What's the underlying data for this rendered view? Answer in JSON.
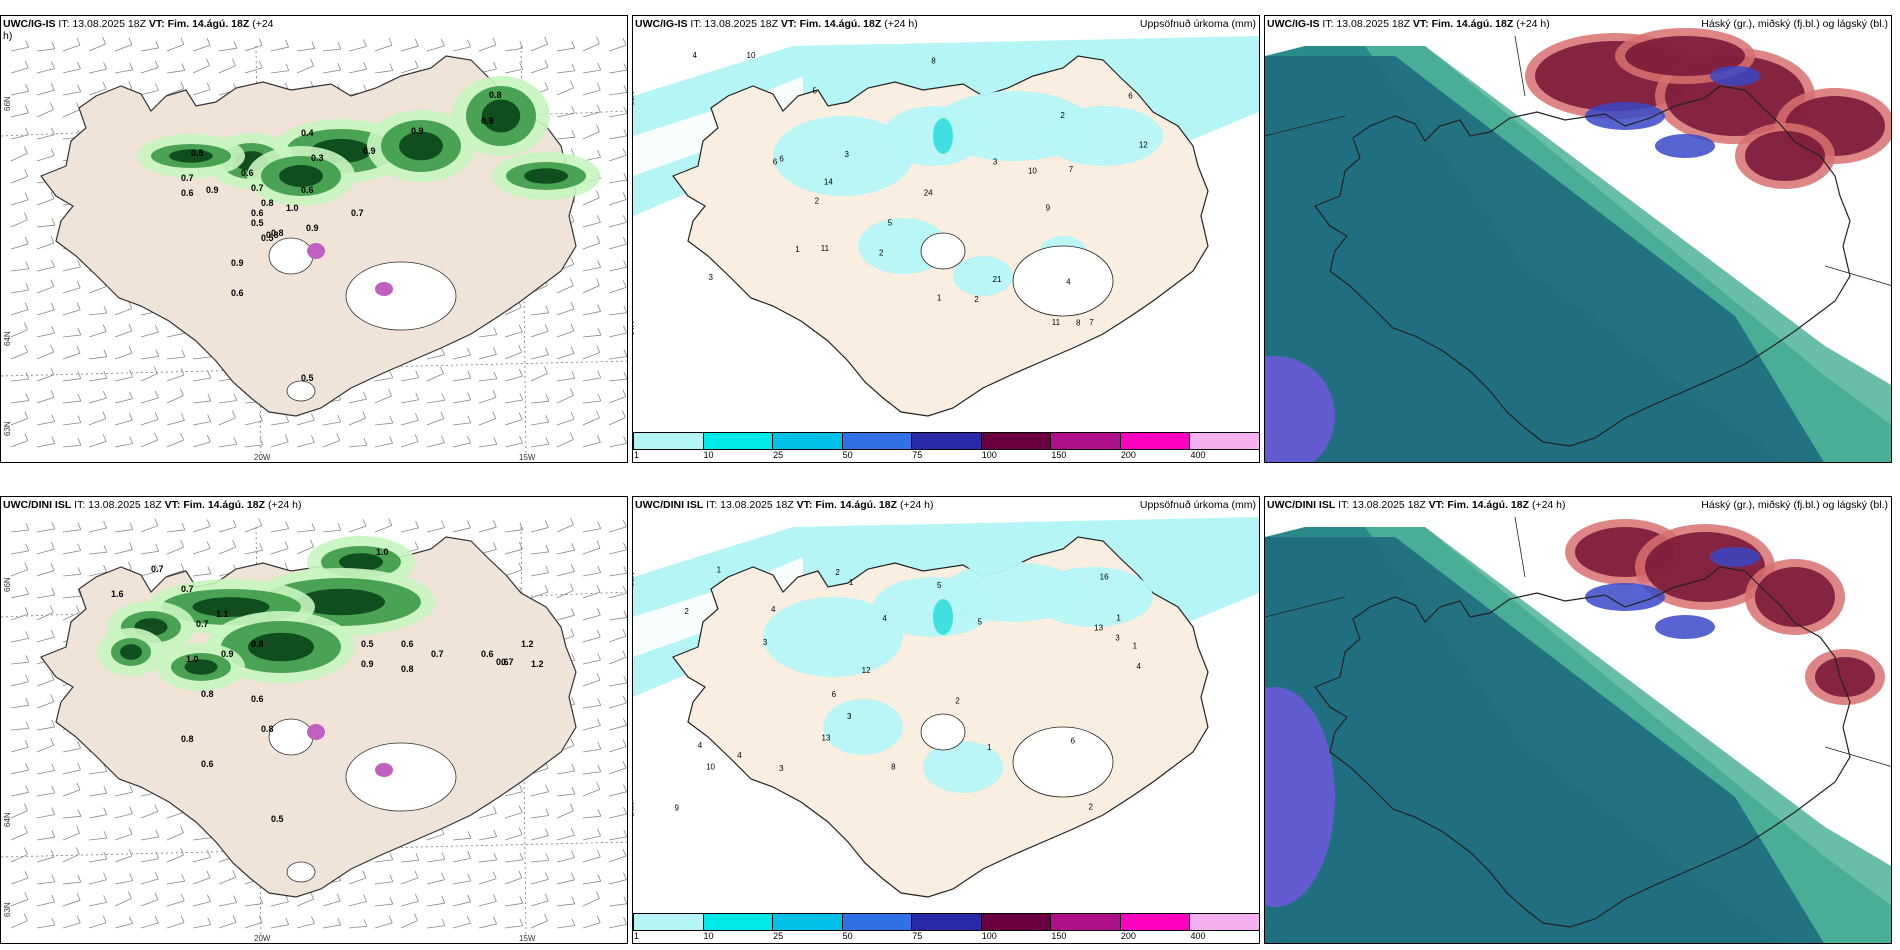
{
  "rows": [
    {
      "model": "UWC/IG-IS",
      "wind_panel": {
        "title_model": "UWC/IG-IS",
        "title_rest": " IT: 13.08.2025 18Z ",
        "title_vt": "VT: Fim. 14.ágú. 18Z",
        "title_tail": " (+24",
        "title_tail2": "h)"
      },
      "precip_panel": {
        "title_model": "UWC/IG-IS",
        "title_rest": " IT: 13.08.2025 18Z ",
        "title_vt": "VT: Fim. 14.ágú. 18Z",
        "title_tail": " (+24 h)",
        "right": "Uppsöfnuð úrkoma (mm)"
      },
      "cloud_panel": {
        "title_model": "UWC/IG-IS",
        "title_rest": " IT: 13.08.2025 18Z ",
        "title_vt": "VT: Fim. 14.ágú. 18Z",
        "title_tail": " (+24 h)",
        "right": "Háský (gr.), miðský (fj.bl.) og lágský (bl.)"
      },
      "wind_values": [
        "0.8",
        "0.9",
        "0.5",
        "0.4",
        "0.3",
        "0.9",
        "0.9",
        "0.6",
        "0.7",
        "0.7",
        "0.9",
        "0.6",
        "0.8",
        "0.5",
        "0.6",
        "1.0",
        "0.9",
        "0.5",
        "0.8",
        "0.9",
        "0.7",
        "0.6",
        "0.8",
        "0.6",
        "0.5"
      ],
      "precip_values": [
        "5",
        "6",
        "10",
        "9",
        "7",
        "5",
        "2",
        "2",
        "11",
        "10",
        "7",
        "8",
        "4",
        "11",
        "14",
        "21",
        "24",
        "12",
        "6",
        "3",
        "8",
        "6",
        "2",
        "1",
        "4",
        "3",
        "1",
        "3",
        "2"
      ]
    },
    {
      "model": "UWC/DINI ISL",
      "wind_panel": {
        "title_model": "UWC/DINI ISL",
        "title_rest": " IT: 13.08.2025 18Z ",
        "title_vt": "VT: Fim. 14.ágú. 18Z",
        "title_tail": " (+24 h)",
        "title_tail2": ""
      },
      "precip_panel": {
        "title_model": "UWC/DINI ISL",
        "title_rest": " IT: 13.08.2025 18Z ",
        "title_vt": "VT: Fim. 14.ágú. 18Z",
        "title_tail": " (+24 h)",
        "right": "Uppsöfnuð úrkoma (mm)"
      },
      "cloud_panel": {
        "title_model": "UWC/DINI ISL",
        "title_rest": " IT: 13.08.2025 18Z ",
        "title_vt": "VT: Fim. 14.ágú. 18Z",
        "title_tail": " (+24 h)",
        "right": "Háský (gr.), miðský (fj.bl.) og lágský (bl.)"
      },
      "wind_values": [
        "1.0",
        "0.7",
        "0.7",
        "1.6",
        "0.7",
        "1.1",
        "0.8",
        "0.9",
        "1.0",
        "0.6",
        "0.9",
        "1.2",
        "0.7",
        "0.8",
        "0.6",
        "0.5",
        "0.8",
        "0.6",
        "0.8",
        "0.7",
        "1.2",
        "0.6",
        "0.8",
        "0.6",
        "0.5"
      ],
      "precip_values": [
        "4",
        "5",
        "8",
        "1",
        "13",
        "13",
        "16",
        "12",
        "10",
        "9",
        "4",
        "3",
        "6",
        "2",
        "1",
        "4",
        "3",
        "2",
        "1",
        "5",
        "3",
        "1",
        "2",
        "3",
        "4",
        "1",
        "2",
        "6",
        "4"
      ]
    }
  ],
  "legend": {
    "ticks": [
      "1",
      "10",
      "25",
      "50",
      "75",
      "100",
      "150",
      "200",
      "400"
    ],
    "colors": [
      "#b6f5f5",
      "#00e8e8",
      "#00c0e8",
      "#3070e8",
      "#2a2aa8",
      "#6a0040",
      "#b0108a",
      "#ff00c0",
      "#f5b0f0"
    ]
  },
  "axes": {
    "lat_top": "66N",
    "lat_bottom": "64N",
    "lat_bottom2": "63N",
    "lon_left": "20W",
    "lon_right": "15W"
  }
}
